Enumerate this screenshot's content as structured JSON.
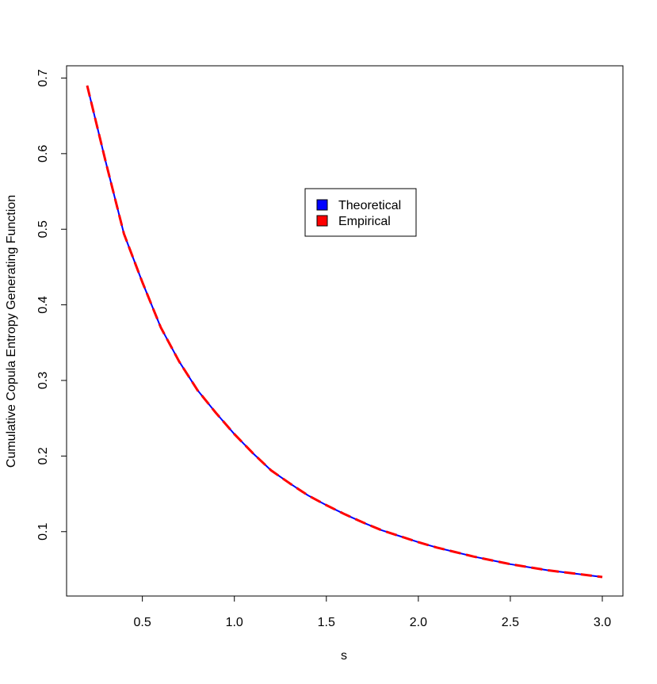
{
  "chart_data": {
    "type": "line",
    "title": "",
    "xlabel": "s",
    "ylabel": "Cumulative Copula Entropy Generating Function",
    "xlim": [
      0.2,
      3.0
    ],
    "ylim": [
      0.04,
      0.69
    ],
    "x_ticks": [
      0.5,
      1.0,
      1.5,
      2.0,
      2.5,
      3.0
    ],
    "x_tick_labels": [
      "0.5",
      "1.0",
      "1.5",
      "2.0",
      "2.5",
      "3.0"
    ],
    "y_ticks": [
      0.1,
      0.2,
      0.3,
      0.4,
      0.5,
      0.6,
      0.7
    ],
    "y_tick_labels": [
      "0.1",
      "0.2",
      "0.3",
      "0.4",
      "0.5",
      "0.6",
      "0.7"
    ],
    "grid": false,
    "legend": {
      "placement": "upper-center",
      "entries": [
        {
          "label": "Theoretical",
          "color": "#0000ff"
        },
        {
          "label": "Empirical",
          "color": "#ff0000"
        }
      ]
    },
    "x": [
      0.2,
      0.3,
      0.4,
      0.5,
      0.6,
      0.7,
      0.8,
      0.9,
      1.0,
      1.1,
      1.2,
      1.3,
      1.4,
      1.5,
      1.6,
      1.7,
      1.8,
      1.9,
      2.0,
      2.1,
      2.2,
      2.3,
      2.4,
      2.5,
      2.6,
      2.7,
      2.8,
      2.9,
      3.0
    ],
    "series": [
      {
        "name": "Theoretical",
        "color": "#0000ff",
        "line_style": "solid",
        "values": [
          0.69,
          0.59,
          0.494,
          0.43,
          0.37,
          0.325,
          0.287,
          0.257,
          0.229,
          0.204,
          0.181,
          0.164,
          0.148,
          0.135,
          0.123,
          0.112,
          0.102,
          0.094,
          0.086,
          0.079,
          0.073,
          0.067,
          0.062,
          0.057,
          0.053,
          0.049,
          0.046,
          0.043,
          0.04
        ]
      },
      {
        "name": "Empirical",
        "color": "#ff0000",
        "line_style": "dashed",
        "values": [
          0.69,
          0.59,
          0.494,
          0.43,
          0.37,
          0.325,
          0.287,
          0.257,
          0.229,
          0.204,
          0.181,
          0.164,
          0.148,
          0.135,
          0.123,
          0.112,
          0.102,
          0.094,
          0.086,
          0.079,
          0.073,
          0.067,
          0.062,
          0.057,
          0.053,
          0.049,
          0.046,
          0.043,
          0.04
        ]
      }
    ]
  }
}
